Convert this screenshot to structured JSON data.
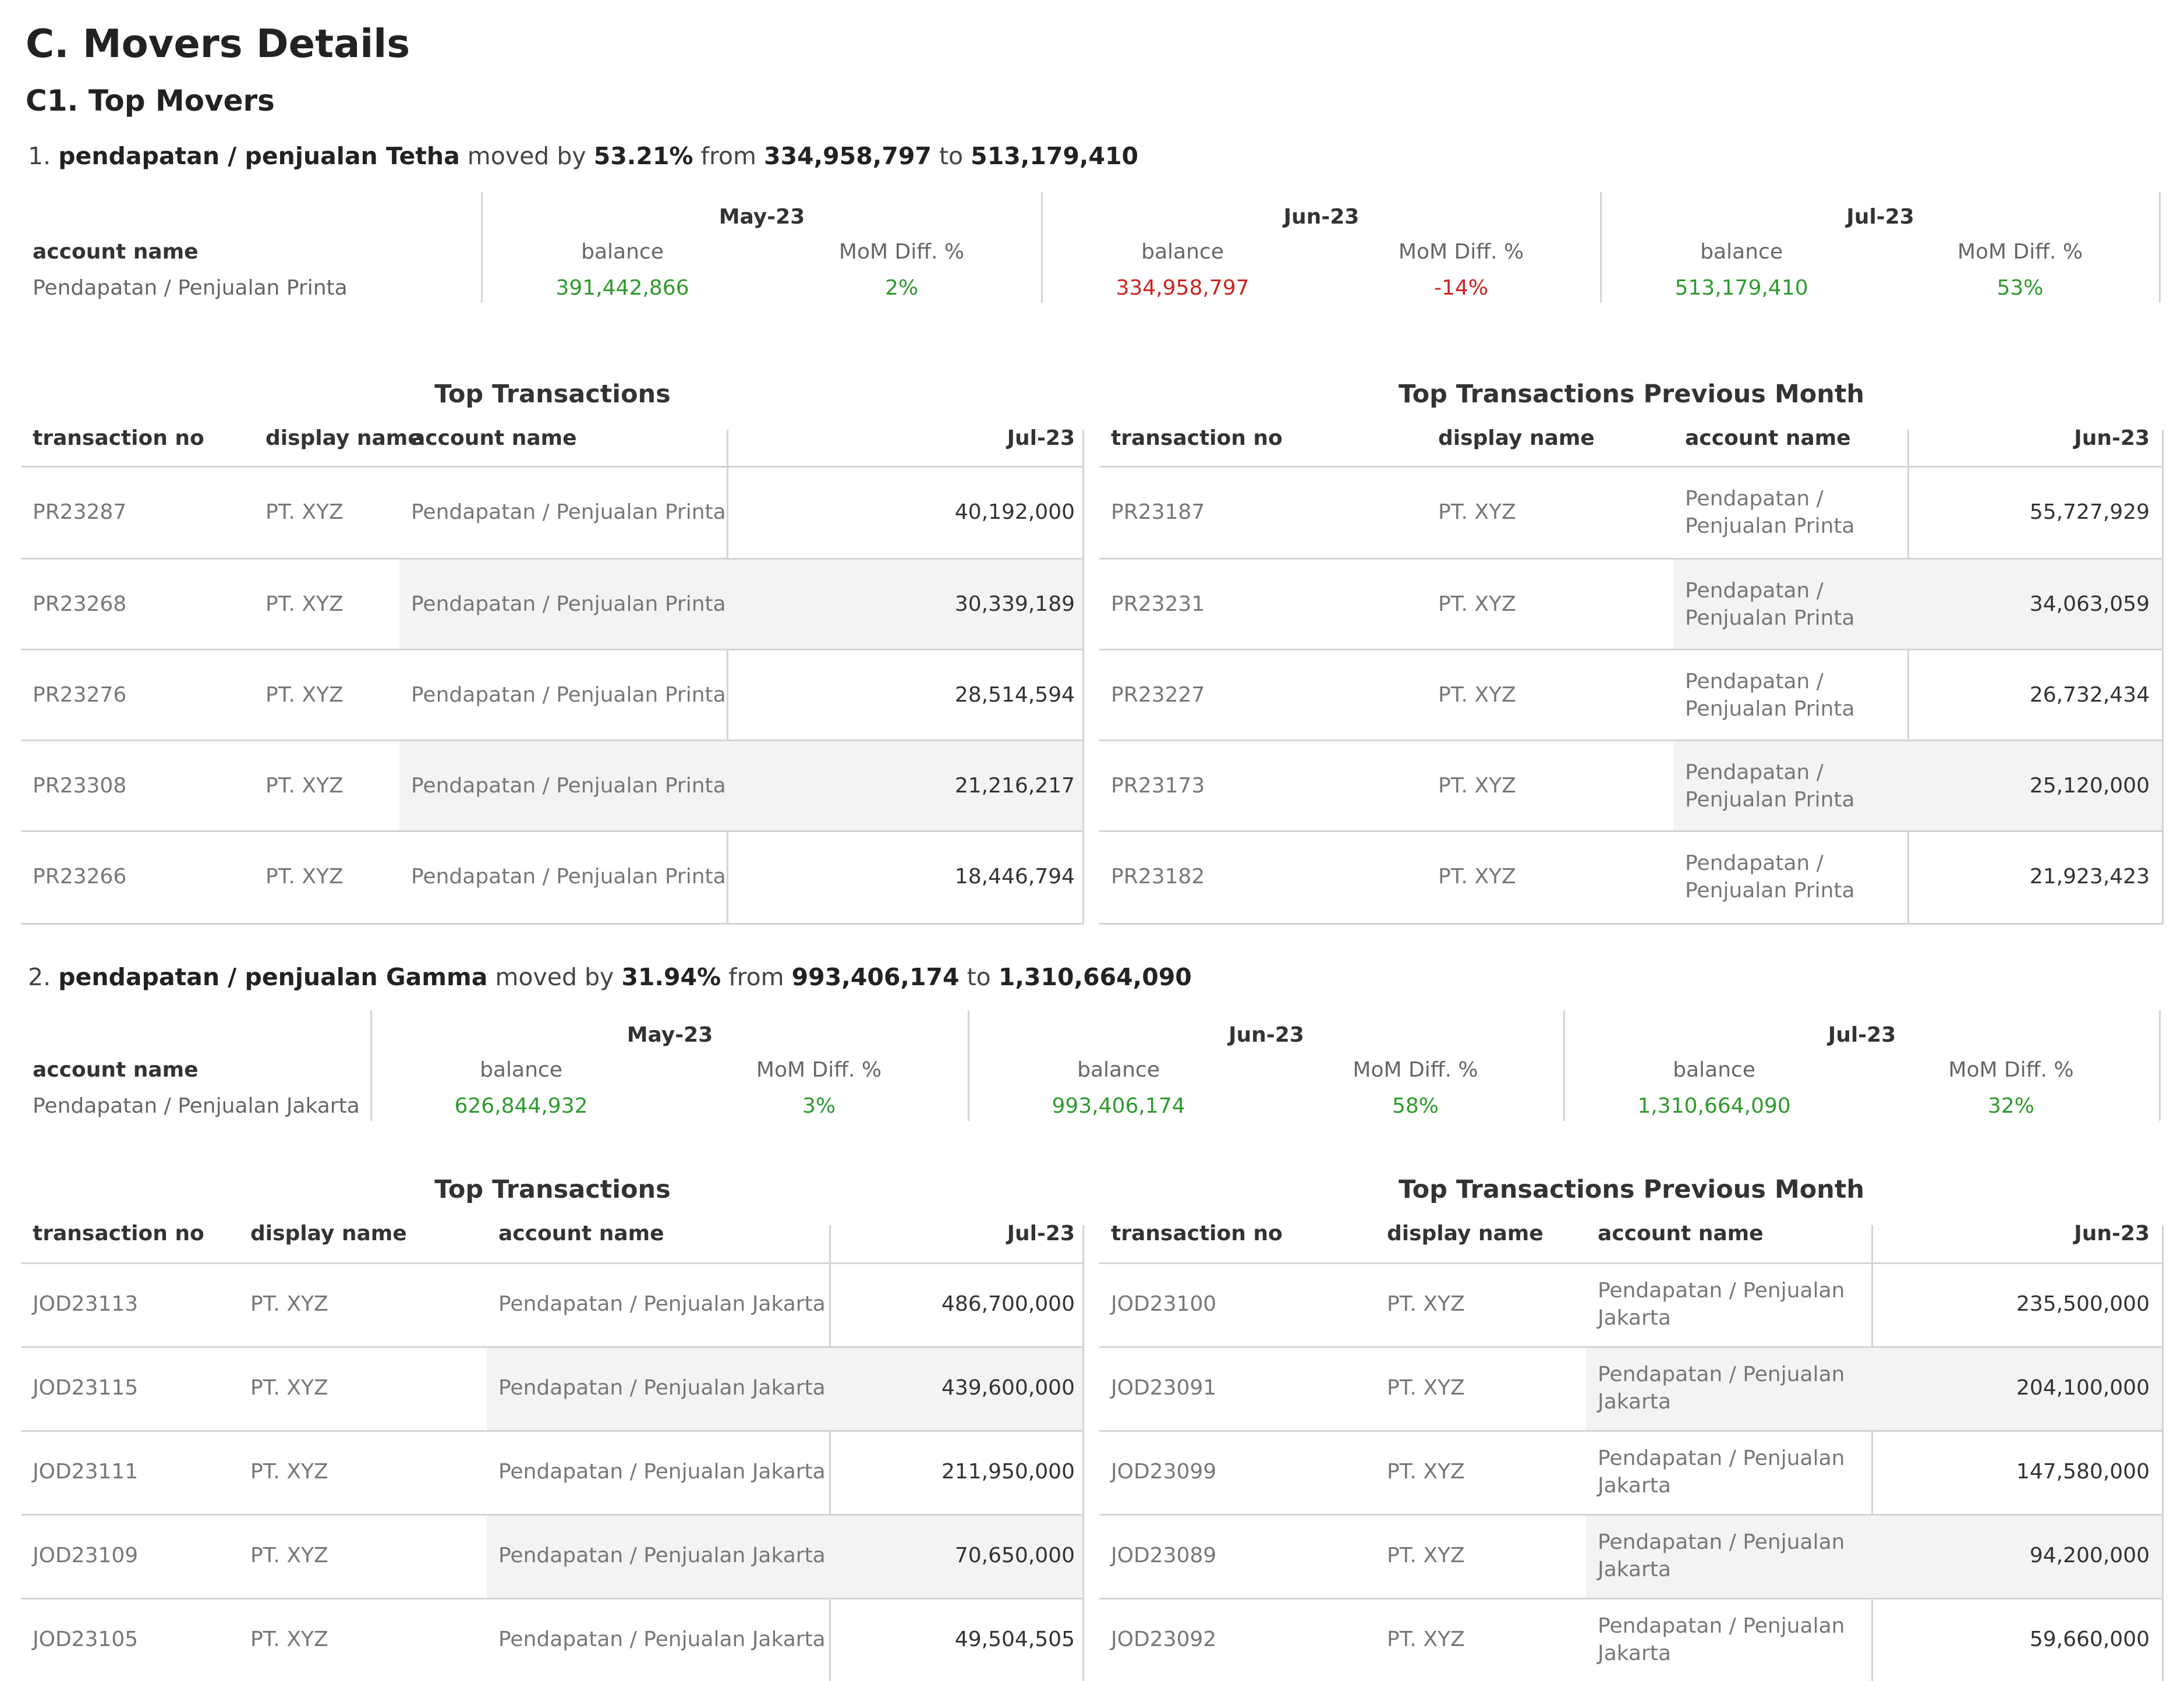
{
  "heading": "C. Movers Details",
  "subheading": "C1. Top Movers",
  "movers": [
    {
      "index": "1.",
      "name": "pendapatan / penjualan Tetha",
      "moved_by_text": "moved by",
      "pct": "53.21%",
      "from_text": "from",
      "from_value": "334,958,797",
      "to_text": "to",
      "to_value": "513,179,410",
      "summary": {
        "account_header": "account name",
        "account_value": "Pendapatan / Penjualan Printa",
        "balance_header": "balance",
        "diff_header": "MoM Diff. %",
        "months": [
          {
            "label": "May-23",
            "balance": "391,442,866",
            "diff": "2%",
            "trend": "pos"
          },
          {
            "label": "Jun-23",
            "balance": "334,958,797",
            "diff": "-14%",
            "trend": "neg"
          },
          {
            "label": "Jul-23",
            "balance": "513,179,410",
            "diff": "53%",
            "trend": "pos"
          }
        ]
      },
      "top_transactions": {
        "title": "Top Transactions",
        "headers": {
          "tx": "transaction no",
          "display": "display name",
          "account": "account name",
          "amount": "Jul-23"
        },
        "rows": [
          {
            "tx": "PR23287",
            "display": "PT. XYZ",
            "account": "Pendapatan / Penjualan Printa",
            "amount": "40,192,000"
          },
          {
            "tx": "PR23268",
            "display": "PT. XYZ",
            "account": "Pendapatan / Penjualan Printa",
            "amount": "30,339,189"
          },
          {
            "tx": "PR23276",
            "display": "PT. XYZ",
            "account": "Pendapatan / Penjualan Printa",
            "amount": "28,514,594"
          },
          {
            "tx": "PR23308",
            "display": "PT. XYZ",
            "account": "Pendapatan / Penjualan Printa",
            "amount": "21,216,217"
          },
          {
            "tx": "PR23266",
            "display": "PT. XYZ",
            "account": "Pendapatan / Penjualan Printa",
            "amount": "18,446,794"
          }
        ]
      },
      "prev_transactions": {
        "title": "Top Transactions Previous Month",
        "headers": {
          "tx": "transaction no",
          "display": "display name",
          "account": "account name",
          "amount": "Jun-23"
        },
        "rows": [
          {
            "tx": "PR23187",
            "display": "PT. XYZ",
            "account": "Pendapatan / Penjualan Printa",
            "amount": "55,727,929"
          },
          {
            "tx": "PR23231",
            "display": "PT. XYZ",
            "account": "Pendapatan / Penjualan Printa",
            "amount": "34,063,059"
          },
          {
            "tx": "PR23227",
            "display": "PT. XYZ",
            "account": "Pendapatan / Penjualan Printa",
            "amount": "26,732,434"
          },
          {
            "tx": "PR23173",
            "display": "PT. XYZ",
            "account": "Pendapatan / Penjualan Printa",
            "amount": "25,120,000"
          },
          {
            "tx": "PR23182",
            "display": "PT. XYZ",
            "account": "Pendapatan / Penjualan Printa",
            "amount": "21,923,423"
          }
        ]
      }
    },
    {
      "index": "2.",
      "name": "pendapatan / penjualan Gamma",
      "moved_by_text": "moved by",
      "pct": "31.94%",
      "from_text": "from",
      "from_value": "993,406,174",
      "to_text": "to",
      "to_value": "1,310,664,090",
      "summary": {
        "account_header": "account name",
        "account_value": "Pendapatan / Penjualan Jakarta",
        "balance_header": "balance",
        "diff_header": "MoM Diff. %",
        "months": [
          {
            "label": "May-23",
            "balance": "626,844,932",
            "diff": "3%",
            "trend": "pos"
          },
          {
            "label": "Jun-23",
            "balance": "993,406,174",
            "diff": "58%",
            "trend": "pos"
          },
          {
            "label": "Jul-23",
            "balance": "1,310,664,090",
            "diff": "32%",
            "trend": "pos"
          }
        ]
      },
      "top_transactions": {
        "title": "Top Transactions",
        "headers": {
          "tx": "transaction no",
          "display": "display name",
          "account": "account name",
          "amount": "Jul-23"
        },
        "rows": [
          {
            "tx": "JOD23113",
            "display": "PT. XYZ",
            "account": "Pendapatan / Penjualan Jakarta",
            "amount": "486,700,000"
          },
          {
            "tx": "JOD23115",
            "display": "PT. XYZ",
            "account": "Pendapatan / Penjualan Jakarta",
            "amount": "439,600,000"
          },
          {
            "tx": "JOD23111",
            "display": "PT. XYZ",
            "account": "Pendapatan / Penjualan Jakarta",
            "amount": "211,950,000"
          },
          {
            "tx": "JOD23109",
            "display": "PT. XYZ",
            "account": "Pendapatan / Penjualan Jakarta",
            "amount": "70,650,000"
          },
          {
            "tx": "JOD23105",
            "display": "PT. XYZ",
            "account": "Pendapatan / Penjualan Jakarta",
            "amount": "49,504,505"
          }
        ]
      },
      "prev_transactions": {
        "title": "Top Transactions Previous Month",
        "headers": {
          "tx": "transaction no",
          "display": "display name",
          "account": "account name",
          "amount": "Jun-23"
        },
        "rows": [
          {
            "tx": "JOD23100",
            "display": "PT. XYZ",
            "account": "Pendapatan / Penjualan Jakarta",
            "amount": "235,500,000"
          },
          {
            "tx": "JOD23091",
            "display": "PT. XYZ",
            "account": "Pendapatan / Penjualan Jakarta",
            "amount": "204,100,000"
          },
          {
            "tx": "JOD23099",
            "display": "PT. XYZ",
            "account": "Pendapatan / Penjualan Jakarta",
            "amount": "147,580,000"
          },
          {
            "tx": "JOD23089",
            "display": "PT. XYZ",
            "account": "Pendapatan / Penjualan Jakarta",
            "amount": "94,200,000"
          },
          {
            "tx": "JOD23092",
            "display": "PT. XYZ",
            "account": "Pendapatan / Penjualan Jakarta",
            "amount": "59,660,000"
          }
        ]
      }
    }
  ]
}
